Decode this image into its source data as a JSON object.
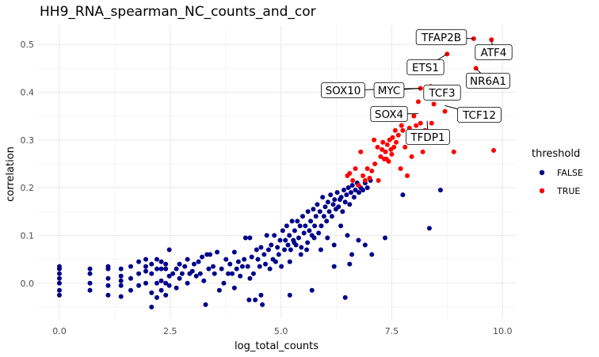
{
  "chart_data": {
    "type": "scatter",
    "title": "HH9_RNA_spearman_NC_counts_and_cor",
    "xlabel": "log_total_counts",
    "ylabel": "correlation",
    "xlim": [
      -0.5,
      10.3
    ],
    "ylim": [
      -0.075,
      0.54
    ],
    "x_ticks": [
      "0.0",
      "2.5",
      "5.0",
      "7.5",
      "10.0"
    ],
    "y_ticks": [
      "0.0",
      "0.1",
      "0.2",
      "0.3",
      "0.4",
      "0.5"
    ],
    "grid": true,
    "legend": {
      "title": "threshold",
      "placement": "right",
      "entries": [
        "FALSE",
        "TRUE"
      ]
    },
    "series": [
      {
        "name": "FALSE",
        "color": "#00008b",
        "points": [
          [
            0.0,
            -0.025
          ],
          [
            0.0,
            -0.015
          ],
          [
            0.0,
            0.0
          ],
          [
            0.0,
            0.01
          ],
          [
            0.0,
            0.02
          ],
          [
            0.0,
            0.03
          ],
          [
            0.0,
            0.035
          ],
          [
            0.69,
            -0.015
          ],
          [
            0.69,
            0.0
          ],
          [
            0.69,
            0.02
          ],
          [
            0.69,
            0.03
          ],
          [
            1.1,
            -0.025
          ],
          [
            1.1,
            -0.005
          ],
          [
            1.1,
            0.01
          ],
          [
            1.1,
            0.03
          ],
          [
            1.1,
            0.035
          ],
          [
            1.39,
            -0.028
          ],
          [
            1.39,
            -0.005
          ],
          [
            1.39,
            0.005
          ],
          [
            1.39,
            0.015
          ],
          [
            1.39,
            0.03
          ],
          [
            1.61,
            -0.015
          ],
          [
            1.61,
            0.01
          ],
          [
            1.61,
            0.035
          ],
          [
            1.79,
            -0.005
          ],
          [
            1.79,
            0.02
          ],
          [
            1.79,
            0.045
          ],
          [
            1.95,
            0.0
          ],
          [
            1.95,
            0.025
          ],
          [
            1.95,
            0.035
          ],
          [
            1.95,
            0.05
          ],
          [
            2.08,
            -0.05
          ],
          [
            2.08,
            -0.02
          ],
          [
            2.08,
            0.02
          ],
          [
            2.08,
            0.04
          ],
          [
            2.2,
            -0.03
          ],
          [
            2.2,
            0.0
          ],
          [
            2.2,
            0.03
          ],
          [
            2.2,
            0.05
          ],
          [
            2.3,
            -0.015
          ],
          [
            2.3,
            0.005
          ],
          [
            2.3,
            0.03
          ],
          [
            2.3,
            0.045
          ],
          [
            2.4,
            -0.025
          ],
          [
            2.4,
            0.0
          ],
          [
            2.4,
            0.03
          ],
          [
            2.4,
            0.04
          ],
          [
            2.48,
            -0.005
          ],
          [
            2.48,
            0.015
          ],
          [
            2.48,
            0.07
          ],
          [
            2.56,
            0.02
          ],
          [
            2.64,
            -0.01
          ],
          [
            2.64,
            0.03
          ],
          [
            2.71,
            0.01
          ],
          [
            2.71,
            0.04
          ],
          [
            2.77,
            0.02
          ],
          [
            2.83,
            0.035
          ],
          [
            2.89,
            0.0
          ],
          [
            2.89,
            0.05
          ],
          [
            2.94,
            0.02
          ],
          [
            3.0,
            0.025
          ],
          [
            3.04,
            0.04
          ],
          [
            3.09,
            0.015
          ],
          [
            3.14,
            0.045
          ],
          [
            3.18,
            0.02
          ],
          [
            3.22,
            0.055
          ],
          [
            3.26,
            0.005
          ],
          [
            3.3,
            -0.045
          ],
          [
            3.33,
            0.06
          ],
          [
            3.37,
            0.03
          ],
          [
            3.4,
            0.06
          ],
          [
            3.47,
            0.035
          ],
          [
            3.5,
            0.02
          ],
          [
            3.56,
            0.065
          ],
          [
            3.61,
            -0.015
          ],
          [
            3.66,
            0.03
          ],
          [
            3.71,
            0.0
          ],
          [
            3.76,
            0.05
          ],
          [
            3.81,
            0.02
          ],
          [
            3.85,
            0.04
          ],
          [
            3.9,
            0.02
          ],
          [
            3.95,
            0.065
          ],
          [
            4.0,
            0.03
          ],
          [
            4.04,
            0.045
          ],
          [
            4.08,
            0.015
          ],
          [
            4.13,
            0.035
          ],
          [
            4.17,
            0.05
          ],
          [
            4.2,
            0.095
          ],
          [
            4.25,
            0.035
          ],
          [
            4.28,
            -0.035
          ],
          [
            4.3,
            0.095
          ],
          [
            4.34,
            0.055
          ],
          [
            4.38,
            0.02
          ],
          [
            4.42,
            -0.035
          ],
          [
            4.45,
            0.07
          ],
          [
            4.48,
            0.05
          ],
          [
            4.52,
            0.035
          ],
          [
            4.55,
            0.075
          ],
          [
            4.58,
            -0.045
          ],
          [
            4.62,
            0.06
          ],
          [
            4.65,
            0.04
          ],
          [
            4.68,
            0.1
          ],
          [
            4.72,
            0.07
          ],
          [
            4.75,
            0.03
          ],
          [
            4.78,
            0.08
          ],
          [
            4.82,
            0.05
          ],
          [
            4.85,
            0.1
          ],
          [
            4.88,
            0.045
          ],
          [
            4.92,
            0.075
          ],
          [
            4.95,
            0.06
          ],
          [
            4.98,
            0.09
          ],
          [
            5.01,
            0.035
          ],
          [
            5.04,
            0.11
          ],
          [
            5.08,
            0.07
          ],
          [
            5.1,
            0.09
          ],
          [
            5.13,
            0.12
          ],
          [
            5.16,
            0.08
          ],
          [
            5.19,
            0.1
          ],
          [
            5.22,
            0.07
          ],
          [
            5.25,
            0.13
          ],
          [
            5.28,
            0.09
          ],
          [
            5.31,
            0.11
          ],
          [
            5.34,
            0.08
          ],
          [
            5.37,
            0.13
          ],
          [
            5.4,
            0.095
          ],
          [
            5.43,
            0.12
          ],
          [
            5.46,
            0.075
          ],
          [
            5.49,
            0.14
          ],
          [
            5.52,
            0.105
          ],
          [
            5.55,
            0.12
          ],
          [
            5.58,
            0.07
          ],
          [
            5.61,
            0.15
          ],
          [
            5.64,
            0.11
          ],
          [
            5.67,
            0.13
          ],
          [
            5.7,
            0.1
          ],
          [
            5.73,
            0.155
          ],
          [
            5.76,
            0.12
          ],
          [
            5.79,
            0.14
          ],
          [
            5.82,
            0.165
          ],
          [
            5.85,
            0.105
          ],
          [
            5.88,
            0.15
          ],
          [
            5.91,
            0.12
          ],
          [
            5.94,
            0.18
          ],
          [
            5.97,
            0.14
          ],
          [
            6.0,
            0.16
          ],
          [
            6.03,
            0.13
          ],
          [
            6.06,
            0.17
          ],
          [
            6.09,
            0.15
          ],
          [
            6.12,
            0.185
          ],
          [
            6.15,
            0.14
          ],
          [
            6.18,
            0.165
          ],
          [
            6.21,
            0.175
          ],
          [
            6.24,
            0.155
          ],
          [
            6.27,
            0.19
          ],
          [
            6.3,
            0.16
          ],
          [
            6.33,
            0.175
          ],
          [
            6.36,
            0.18
          ],
          [
            6.39,
            0.15
          ],
          [
            6.42,
            0.195
          ],
          [
            6.45,
            0.17
          ],
          [
            6.48,
            0.185
          ],
          [
            6.52,
            0.2
          ],
          [
            6.55,
            0.165
          ],
          [
            6.58,
            0.19
          ],
          [
            6.61,
            0.205
          ],
          [
            6.65,
            0.18
          ],
          [
            6.68,
            0.195
          ],
          [
            6.72,
            0.21
          ],
          [
            6.76,
            0.19
          ],
          [
            6.8,
            0.2
          ],
          [
            6.85,
            0.195
          ],
          [
            6.9,
            0.21
          ],
          [
            6.95,
            0.2
          ],
          [
            7.02,
            0.215
          ],
          [
            5.2,
            0.045
          ],
          [
            5.3,
            0.085
          ],
          [
            5.45,
            0.06
          ],
          [
            5.6,
            0.085
          ],
          [
            5.75,
            0.095
          ],
          [
            5.9,
            0.07
          ],
          [
            6.05,
            0.095
          ],
          [
            6.2,
            0.08
          ],
          [
            6.35,
            0.12
          ],
          [
            6.5,
            0.1
          ],
          [
            6.6,
            0.06
          ],
          [
            6.75,
            0.09
          ],
          [
            6.9,
            0.08
          ],
          [
            7.05,
            0.06
          ],
          [
            7.35,
            0.095
          ],
          [
            6.45,
            -0.03
          ],
          [
            6.55,
            0.04
          ],
          [
            6.2,
            0.035
          ],
          [
            5.7,
            -0.015
          ],
          [
            5.2,
            -0.025
          ],
          [
            4.55,
            -0.025
          ],
          [
            4.3,
            0.01
          ],
          [
            3.95,
            -0.01
          ],
          [
            7.75,
            0.185
          ],
          [
            8.35,
            0.115
          ],
          [
            8.6,
            0.195
          ]
        ]
      },
      {
        "name": "TRUE",
        "color": "#ff0000",
        "points": [
          [
            6.5,
            0.225
          ],
          [
            6.55,
            0.23
          ],
          [
            6.62,
            0.215
          ],
          [
            6.68,
            0.24
          ],
          [
            6.75,
            0.205
          ],
          [
            6.8,
            0.275
          ],
          [
            6.85,
            0.225
          ],
          [
            6.9,
            0.215
          ],
          [
            6.95,
            0.24
          ],
          [
            7.0,
            0.22
          ],
          [
            7.05,
            0.235
          ],
          [
            7.1,
            0.3
          ],
          [
            7.12,
            0.25
          ],
          [
            7.18,
            0.285
          ],
          [
            7.2,
            0.215
          ],
          [
            7.25,
            0.265
          ],
          [
            7.28,
            0.28
          ],
          [
            7.3,
            0.295
          ],
          [
            7.33,
            0.26
          ],
          [
            7.36,
            0.275
          ],
          [
            7.38,
            0.26
          ],
          [
            7.4,
            0.29
          ],
          [
            7.43,
            0.255
          ],
          [
            7.45,
            0.3
          ],
          [
            7.48,
            0.28
          ],
          [
            7.5,
            0.27
          ],
          [
            7.52,
            0.305
          ],
          [
            7.55,
            0.285
          ],
          [
            7.58,
            0.32
          ],
          [
            7.6,
            0.295
          ],
          [
            7.65,
            0.31
          ],
          [
            7.7,
            0.24
          ],
          [
            7.72,
            0.33
          ],
          [
            7.75,
            0.32
          ],
          [
            7.8,
            0.285
          ],
          [
            7.85,
            0.225
          ],
          [
            7.9,
            0.325
          ],
          [
            7.95,
            0.265
          ],
          [
            8.0,
            0.35
          ],
          [
            8.05,
            0.33
          ],
          [
            8.1,
            0.38
          ],
          [
            8.15,
            0.335
          ],
          [
            8.2,
            0.275
          ],
          [
            8.25,
            0.32
          ],
          [
            8.4,
            0.335
          ],
          [
            8.45,
            0.375
          ],
          [
            8.7,
            0.36
          ],
          [
            8.9,
            0.275
          ],
          [
            9.8,
            0.278
          ],
          [
            8.15,
            0.408
          ],
          [
            8.38,
            0.412
          ],
          [
            8.75,
            0.48
          ],
          [
            9.4,
            0.45
          ],
          [
            9.35,
            0.512
          ],
          [
            9.75,
            0.51
          ]
        ]
      }
    ],
    "annotations": [
      {
        "text": "TFAP2B",
        "x": 9.35,
        "y": 0.512
      },
      {
        "text": "ATF4",
        "x": 9.75,
        "y": 0.51
      },
      {
        "text": "ETS1",
        "x": 8.75,
        "y": 0.48
      },
      {
        "text": "NR6A1",
        "x": 9.4,
        "y": 0.45
      },
      {
        "text": "SOX10",
        "x": 8.15,
        "y": 0.408
      },
      {
        "text": "MYC",
        "x": 8.15,
        "y": 0.408
      },
      {
        "text": "TCF3",
        "x": 8.38,
        "y": 0.412
      },
      {
        "text": "TCF12",
        "x": 8.7,
        "y": 0.372
      },
      {
        "text": "SOX4",
        "x": 8.1,
        "y": 0.355
      },
      {
        "text": "TFDP1",
        "x": 8.3,
        "y": 0.34
      }
    ]
  }
}
